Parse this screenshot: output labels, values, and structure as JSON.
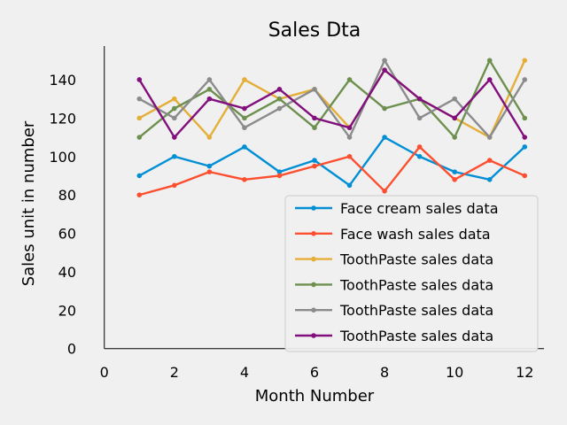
{
  "chart_data": {
    "type": "line",
    "title": "Sales Dta",
    "xlabel": "Month Number",
    "ylabel": "Sales unit in number",
    "xlim": [
      -0.55,
      12.55
    ],
    "ylim": [
      -7.5,
      157.5
    ],
    "xticks": [
      0,
      2,
      4,
      6,
      8,
      10,
      12
    ],
    "yticks": [
      0,
      20,
      40,
      60,
      80,
      100,
      120,
      140
    ],
    "grid": false,
    "legend_position": "lower-right",
    "x": [
      1,
      2,
      3,
      4,
      5,
      6,
      7,
      8,
      9,
      10,
      11,
      12
    ],
    "series": [
      {
        "name": "Face cream sales data",
        "color": "#008fd5",
        "values": [
          90,
          100,
          95,
          105,
          92,
          98,
          85,
          110,
          100,
          92,
          88,
          105
        ]
      },
      {
        "name": "Face wash sales data",
        "color": "#fc4f30",
        "values": [
          80,
          85,
          92,
          88,
          90,
          95,
          100,
          82,
          105,
          88,
          98,
          90
        ]
      },
      {
        "name": "ToothPaste sales data",
        "color": "#e5ae38",
        "values": [
          120,
          130,
          110,
          140,
          130,
          135,
          115,
          145,
          130,
          120,
          110,
          150
        ]
      },
      {
        "name": "ToothPaste sales data",
        "color": "#6d904f",
        "values": [
          110,
          125,
          135,
          120,
          130,
          115,
          140,
          125,
          130,
          110,
          150,
          120
        ]
      },
      {
        "name": "ToothPaste sales data",
        "color": "#8b8b8b",
        "values": [
          130,
          120,
          140,
          115,
          125,
          135,
          110,
          150,
          120,
          130,
          110,
          140
        ]
      },
      {
        "name": "ToothPaste sales data",
        "color": "#810f7c",
        "values": [
          140,
          110,
          130,
          125,
          135,
          120,
          115,
          145,
          130,
          120,
          140,
          110
        ]
      }
    ]
  }
}
